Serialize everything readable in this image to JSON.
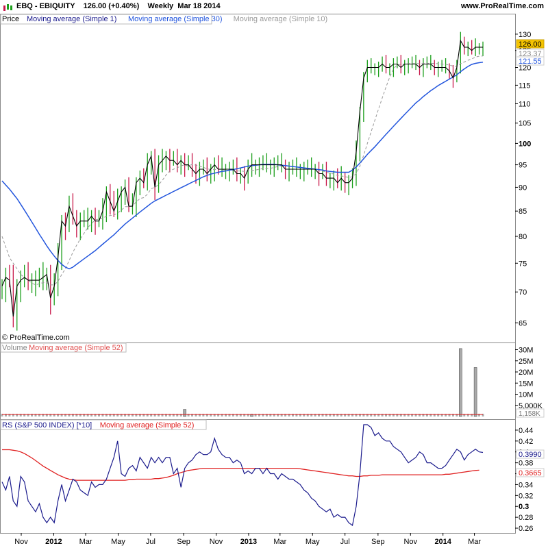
{
  "header": {
    "title": "EBQ - EBIQUITY    126.00 (+0.40%)    Weekly  Mar 18 2014",
    "site": "www.ProRealTime.com"
  },
  "price_panel": {
    "legend": [
      "Price",
      "Moving average (Simple 1)",
      "Moving average (Simple 30)",
      "Moving average (Simple 10)"
    ],
    "copyright": "© ProRealTime.com",
    "y_ticks": [
      "130",
      "125",
      "120",
      "115",
      "110",
      "105",
      "100",
      "95",
      "90",
      "85",
      "80",
      "75",
      "70",
      "65"
    ],
    "last_labels": [
      "126.00",
      "123.37",
      "121.55"
    ]
  },
  "volume_panel": {
    "legend": [
      "Volume",
      "Moving average (Simple 52)"
    ],
    "y_ticks": [
      "30M",
      "25M",
      "20M",
      "15M",
      "10M",
      "5,000K"
    ],
    "last_label": "1,158K"
  },
  "rs_panel": {
    "legend": [
      "RS (S&P 500 INDEX) [*10]",
      "Moving average (Simple 52)"
    ],
    "y_ticks": [
      "0.44",
      "0.42",
      "0.4",
      "0.38",
      "0.36",
      "0.34",
      "0.32",
      "0.3",
      "0.28",
      "0.26"
    ],
    "last_labels": [
      "0.3990",
      "0.3665"
    ]
  },
  "x_axis": {
    "ticks": [
      "Nov",
      "2012",
      "Mar",
      "May",
      "Jul",
      "Sep",
      "Nov",
      "2013",
      "Mar",
      "May",
      "Jul",
      "Sep",
      "Nov",
      "2014",
      "Mar"
    ]
  },
  "colors": {
    "up": "#1a9e1a",
    "down": "#c8184a",
    "ma1": "#000000",
    "ma30": "#2255dd",
    "ma10": "#999999",
    "rs": "#1a1a8c",
    "rs_ma": "#e02020",
    "last_price_bg": "#f5c400"
  },
  "chart_data": {
    "type": "line",
    "title": "EBQ - EBIQUITY",
    "frequency": "Weekly",
    "x": [
      "2011-09-26",
      "2011-10-03",
      "2011-10-10",
      "2011-10-17",
      "2011-10-24",
      "2011-10-31",
      "2011-11-07",
      "2011-11-14",
      "2011-11-21",
      "2011-11-28",
      "2011-12-05",
      "2011-12-12",
      "2011-12-19",
      "2011-12-26",
      "2012-01-02",
      "2012-01-09",
      "2012-01-16",
      "2012-01-23",
      "2012-01-30",
      "2012-02-06",
      "2012-02-13",
      "2012-02-20",
      "2012-02-27",
      "2012-03-05",
      "2012-03-12",
      "2012-03-19",
      "2012-03-26",
      "2012-04-02",
      "2012-04-09",
      "2012-04-16",
      "2012-04-23",
      "2012-04-30",
      "2012-05-07",
      "2012-05-14",
      "2012-05-21",
      "2012-05-28",
      "2012-06-04",
      "2012-06-11",
      "2012-06-18",
      "2012-06-25",
      "2012-07-02",
      "2012-07-09",
      "2012-07-16",
      "2012-07-23",
      "2012-07-30",
      "2012-08-06",
      "2012-08-13",
      "2012-08-20",
      "2012-08-27",
      "2012-09-03",
      "2012-09-10",
      "2012-09-17",
      "2012-09-24",
      "2012-10-01",
      "2012-10-08",
      "2012-10-15",
      "2012-10-22",
      "2012-10-29",
      "2012-11-05",
      "2012-11-12",
      "2012-11-19",
      "2012-11-26",
      "2012-12-03",
      "2012-12-10",
      "2012-12-17",
      "2012-12-24",
      "2012-12-31",
      "2013-01-07",
      "2013-01-14",
      "2013-01-21",
      "2013-01-28",
      "2013-02-04",
      "2013-02-11",
      "2013-02-18",
      "2013-02-25",
      "2013-03-04",
      "2013-03-11",
      "2013-03-18",
      "2013-03-25",
      "2013-04-01",
      "2013-04-08",
      "2013-04-15",
      "2013-04-22",
      "2013-04-29",
      "2013-05-06",
      "2013-05-13",
      "2013-05-20",
      "2013-05-27",
      "2013-06-03",
      "2013-06-10",
      "2013-06-17",
      "2013-06-24",
      "2013-07-01",
      "2013-07-08",
      "2013-07-15",
      "2013-07-22",
      "2013-07-29",
      "2013-08-05",
      "2013-08-12",
      "2013-08-19",
      "2013-08-26",
      "2013-09-02",
      "2013-09-09",
      "2013-09-16",
      "2013-09-23",
      "2013-09-30",
      "2013-10-07",
      "2013-10-14",
      "2013-10-21",
      "2013-10-28",
      "2013-11-04",
      "2013-11-11",
      "2013-11-18",
      "2013-11-25",
      "2013-12-02",
      "2013-12-09",
      "2013-12-16",
      "2013-12-23",
      "2013-12-30",
      "2014-01-06",
      "2014-01-13",
      "2014-01-20",
      "2014-01-27",
      "2014-02-03",
      "2014-02-10",
      "2014-02-17",
      "2014-02-24",
      "2014-03-03",
      "2014-03-10",
      "2014-03-17"
    ],
    "series": [
      {
        "name": "Moving average (Simple 1)",
        "values": [
          71,
          72.5,
          72,
          66,
          71,
          72,
          72.5,
          72,
          72,
          72,
          72,
          72.5,
          73,
          69,
          71,
          76,
          83,
          82,
          86,
          84,
          82,
          83,
          83,
          83,
          84,
          83,
          83,
          85,
          89,
          87,
          85,
          87,
          89,
          90,
          86,
          86,
          91,
          92,
          91,
          95,
          97,
          90,
          95,
          96,
          97,
          96,
          96,
          95,
          96,
          95,
          95,
          94,
          93,
          94,
          94,
          93,
          94,
          95,
          94,
          94,
          94,
          94,
          94,
          93,
          93,
          92,
          94,
          95,
          95,
          95,
          95,
          95,
          95,
          95,
          95,
          95,
          94,
          94,
          94,
          94,
          94,
          94,
          94,
          94,
          94,
          93,
          93,
          92,
          92,
          92,
          91,
          92,
          91,
          91,
          92,
          98,
          108,
          117,
          120,
          120,
          120,
          120,
          121,
          120,
          120,
          121,
          121,
          120,
          121,
          121,
          121,
          121,
          120,
          121,
          121,
          121,
          120,
          120,
          120,
          120,
          119,
          117,
          120,
          128,
          126,
          126,
          125,
          126,
          126,
          126
        ]
      },
      {
        "name": "Moving average (Simple 30)",
        "values": [
          91.4,
          90.5,
          89.6,
          88.6,
          87.6,
          86.4,
          85.2,
          84.0,
          82.8,
          81.6,
          80.4,
          79.3,
          78.2,
          77.2,
          76.3,
          75.5,
          74.8,
          74.3,
          74.0,
          74.3,
          74.8,
          75.3,
          75.8,
          76.3,
          76.8,
          77.3,
          77.9,
          78.5,
          79.1,
          79.7,
          80.3,
          81.0,
          81.7,
          82.4,
          83.0,
          83.6,
          84.2,
          84.8,
          85.4,
          86.0,
          86.6,
          87.1,
          87.5,
          87.9,
          88.3,
          88.7,
          89.1,
          89.5,
          89.9,
          90.3,
          90.7,
          91.1,
          91.5,
          91.9,
          92.3,
          92.6,
          92.9,
          93.1,
          93.3,
          93.5,
          93.6,
          93.8,
          93.9,
          94.1,
          94.3,
          94.5,
          94.7,
          94.8,
          94.9,
          95.0,
          95.1,
          95.1,
          95.1,
          95.1,
          95.0,
          94.9,
          94.8,
          94.7,
          94.6,
          94.5,
          94.4,
          94.3,
          94.2,
          94.1,
          94.0,
          93.9,
          93.8,
          93.6,
          93.5,
          93.4,
          93.3,
          93.3,
          93.3,
          93.3,
          93.8,
          94.5,
          95.4,
          96.4,
          97.4,
          98.3,
          99.2,
          100.2,
          101.2,
          102.2,
          103.2,
          104.2,
          105.2,
          106.2,
          107.2,
          108.2,
          109.2,
          110.2,
          111.0,
          111.9,
          112.7,
          113.5,
          114.2,
          114.9,
          115.5,
          116.1,
          116.7,
          117.3,
          117.9,
          118.8,
          119.6,
          120.3,
          120.9,
          121.2,
          121.4,
          121.55
        ]
      },
      {
        "name": "Moving average (Simple 10)",
        "values": [
          80,
          78,
          76,
          75,
          74,
          73,
          72.5,
          72,
          71.5,
          71.2,
          71.4,
          71.6,
          71.6,
          71.2,
          71.2,
          71.8,
          73,
          74,
          75.5,
          77,
          78.3,
          79.5,
          80.6,
          81.7,
          82.5,
          83.2,
          83.4,
          83.5,
          84,
          84.1,
          84.2,
          84.6,
          85.2,
          85.9,
          85.9,
          86.1,
          86.9,
          87.6,
          87.8,
          88.5,
          89.7,
          90,
          90.6,
          91.5,
          92.7,
          93.6,
          94,
          94.3,
          94.8,
          94.9,
          94.7,
          95.1,
          94.9,
          94.7,
          94.4,
          94.1,
          93.9,
          93.9,
          94,
          93.9,
          93.8,
          93.7,
          93.6,
          93.6,
          93.6,
          93.5,
          93.6,
          93.7,
          93.8,
          94,
          94.1,
          94.2,
          94.2,
          94.4,
          94.6,
          94.8,
          94.8,
          94.7,
          94.6,
          94.5,
          94.4,
          94.3,
          94.2,
          94.1,
          94.0,
          93.8,
          93.6,
          93.3,
          93.1,
          92.9,
          92.6,
          92.5,
          92.3,
          92.2,
          92.3,
          93,
          94.7,
          97.2,
          100,
          102.8,
          105.7,
          108.6,
          111.6,
          114.5,
          117.3,
          119.6,
          120.8,
          120.9,
          121,
          121.1,
          121.1,
          121.2,
          121.1,
          121.2,
          121.2,
          121.2,
          121.2,
          121.1,
          121,
          120.9,
          120.7,
          120.4,
          120.3,
          121.1,
          121.6,
          122.1,
          122.5,
          123,
          123.3,
          123.37
        ]
      }
    ],
    "ylim": [
      62,
      133
    ],
    "volume": {
      "spikes": [
        {
          "x": "2012-09-03",
          "value": 3.2
        },
        {
          "x": "2013-01-07",
          "value": 1.0
        },
        {
          "x": "2014-02-03",
          "value": 30.5
        },
        {
          "x": "2014-03-03",
          "value": 22
        }
      ],
      "baseline": 1.2,
      "ma52": 0.9,
      "ylim": [
        0,
        32
      ]
    },
    "rs": {
      "values": [
        0.345,
        0.33,
        0.355,
        0.31,
        0.3,
        0.355,
        0.345,
        0.31,
        0.3,
        0.29,
        0.305,
        0.28,
        0.27,
        0.28,
        0.27,
        0.31,
        0.34,
        0.31,
        0.33,
        0.35,
        0.345,
        0.33,
        0.325,
        0.32,
        0.345,
        0.335,
        0.34,
        0.34,
        0.35,
        0.37,
        0.39,
        0.42,
        0.36,
        0.355,
        0.37,
        0.375,
        0.365,
        0.39,
        0.38,
        0.37,
        0.39,
        0.38,
        0.39,
        0.38,
        0.39,
        0.39,
        0.36,
        0.37,
        0.335,
        0.37,
        0.38,
        0.385,
        0.395,
        0.4,
        0.395,
        0.395,
        0.4,
        0.425,
        0.405,
        0.395,
        0.39,
        0.39,
        0.38,
        0.385,
        0.38,
        0.36,
        0.365,
        0.36,
        0.37,
        0.37,
        0.36,
        0.37,
        0.36,
        0.36,
        0.35,
        0.36,
        0.355,
        0.35,
        0.35,
        0.345,
        0.34,
        0.33,
        0.325,
        0.315,
        0.31,
        0.3,
        0.295,
        0.29,
        0.295,
        0.28,
        0.285,
        0.28,
        0.28,
        0.27,
        0.265,
        0.3,
        0.36,
        0.45,
        0.45,
        0.445,
        0.43,
        0.435,
        0.425,
        0.42,
        0.42,
        0.41,
        0.405,
        0.4,
        0.39,
        0.38,
        0.385,
        0.39,
        0.4,
        0.395,
        0.38,
        0.38,
        0.375,
        0.37,
        0.37,
        0.375,
        0.385,
        0.395,
        0.405,
        0.4,
        0.385,
        0.395,
        0.4,
        0.405,
        0.4,
        0.399
      ],
      "ma52": [
        0.404,
        0.404,
        0.404,
        0.403,
        0.402,
        0.4,
        0.397,
        0.393,
        0.389,
        0.384,
        0.379,
        0.374,
        0.37,
        0.366,
        0.362,
        0.358,
        0.355,
        0.352,
        0.35,
        0.349,
        0.348,
        0.348,
        0.348,
        0.348,
        0.348,
        0.348,
        0.348,
        0.348,
        0.348,
        0.348,
        0.348,
        0.348,
        0.348,
        0.348,
        0.349,
        0.349,
        0.35,
        0.35,
        0.35,
        0.35,
        0.35,
        0.351,
        0.351,
        0.352,
        0.353,
        0.355,
        0.357,
        0.36,
        0.362,
        0.364,
        0.366,
        0.367,
        0.368,
        0.369,
        0.37,
        0.37,
        0.37,
        0.37,
        0.37,
        0.37,
        0.37,
        0.37,
        0.37,
        0.37,
        0.37,
        0.37,
        0.37,
        0.37,
        0.37,
        0.37,
        0.37,
        0.37,
        0.37,
        0.37,
        0.37,
        0.37,
        0.37,
        0.37,
        0.37,
        0.37,
        0.369,
        0.368,
        0.367,
        0.366,
        0.365,
        0.364,
        0.363,
        0.362,
        0.361,
        0.36,
        0.359,
        0.358,
        0.357,
        0.356,
        0.356,
        0.355,
        0.355,
        0.356,
        0.356,
        0.357,
        0.357,
        0.357,
        0.358,
        0.358,
        0.358,
        0.358,
        0.358,
        0.358,
        0.358,
        0.358,
        0.358,
        0.358,
        0.358,
        0.358,
        0.358,
        0.358,
        0.358,
        0.358,
        0.358,
        0.359,
        0.359,
        0.36,
        0.361,
        0.362,
        0.363,
        0.364,
        0.365,
        0.366,
        0.3665
      ],
      "ylim": [
        0.255,
        0.455
      ]
    }
  }
}
